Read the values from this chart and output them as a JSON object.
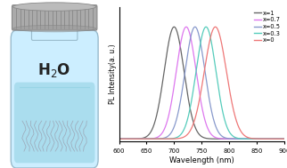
{
  "peaks": [
    700,
    722,
    738,
    758,
    775
  ],
  "widths": [
    18,
    18,
    18,
    18,
    20
  ],
  "labels": [
    "x=1",
    "x=0.7",
    "x=0.5",
    "x=0.3",
    "x=0"
  ],
  "colors": [
    "#666666",
    "#dd77ee",
    "#8899cc",
    "#55ccbb",
    "#ee7777"
  ],
  "xmin": 600,
  "xmax": 900,
  "xticks": [
    600,
    650,
    700,
    750,
    800,
    850,
    900
  ],
  "ylabel": "PL Intensity(a. u.)",
  "xlabel": "Wavelength (nm)",
  "bg_color": "#ffffff",
  "bottle_body_color": "#cceeff",
  "bottle_liquid_color": "#aaddee",
  "bottle_outline_color": "#99bbcc",
  "cap_color": "#aaaaaa",
  "cap_stripe_color": "#777777",
  "wire_color": "#999aaa"
}
